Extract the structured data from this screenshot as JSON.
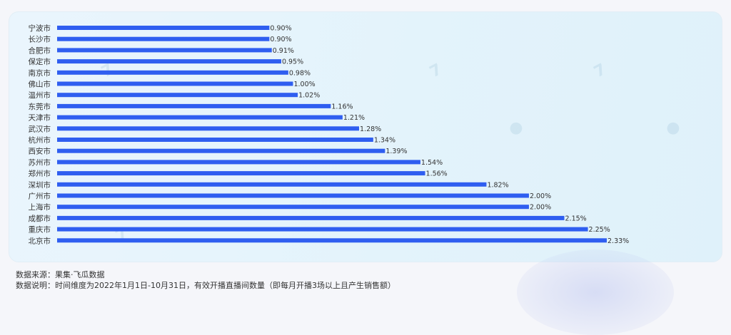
{
  "chart_data": {
    "type": "bar",
    "orientation": "horizontal",
    "categories": [
      "宁波市",
      "长沙市",
      "合肥市",
      "保定市",
      "南京市",
      "佛山市",
      "温州市",
      "东莞市",
      "天津市",
      "武汉市",
      "杭州市",
      "西安市",
      "苏州市",
      "郑州市",
      "深圳市",
      "广州市",
      "上海市",
      "成都市",
      "重庆市",
      "北京市"
    ],
    "values": [
      0.9,
      0.9,
      0.91,
      0.95,
      0.98,
      1.0,
      1.02,
      1.16,
      1.21,
      1.28,
      1.34,
      1.39,
      1.54,
      1.56,
      1.82,
      2.0,
      2.0,
      2.15,
      2.25,
      2.33
    ],
    "value_labels": [
      "0.90%",
      "0.90%",
      "0.91%",
      "0.95%",
      "0.98%",
      "1.00%",
      "1.02%",
      "1.16%",
      "1.21%",
      "1.28%",
      "1.34%",
      "1.39%",
      "1.54%",
      "1.56%",
      "1.82%",
      "2.00%",
      "2.00%",
      "2.15%",
      "2.25%",
      "2.33%"
    ],
    "xlim": [
      0,
      2.33
    ],
    "grid": false,
    "bar_color": "#2f5ef0",
    "title": "",
    "xlabel": "",
    "ylabel": ""
  },
  "footer": {
    "source": "数据来源：果集·飞瓜数据",
    "note": "数据说明：时间维度为2022年1月1日-10月31日，有效开播直播间数量（即每月开播3场以上且产生销售额）"
  },
  "watermark_icons": [
    "brand-watermark-icon"
  ]
}
